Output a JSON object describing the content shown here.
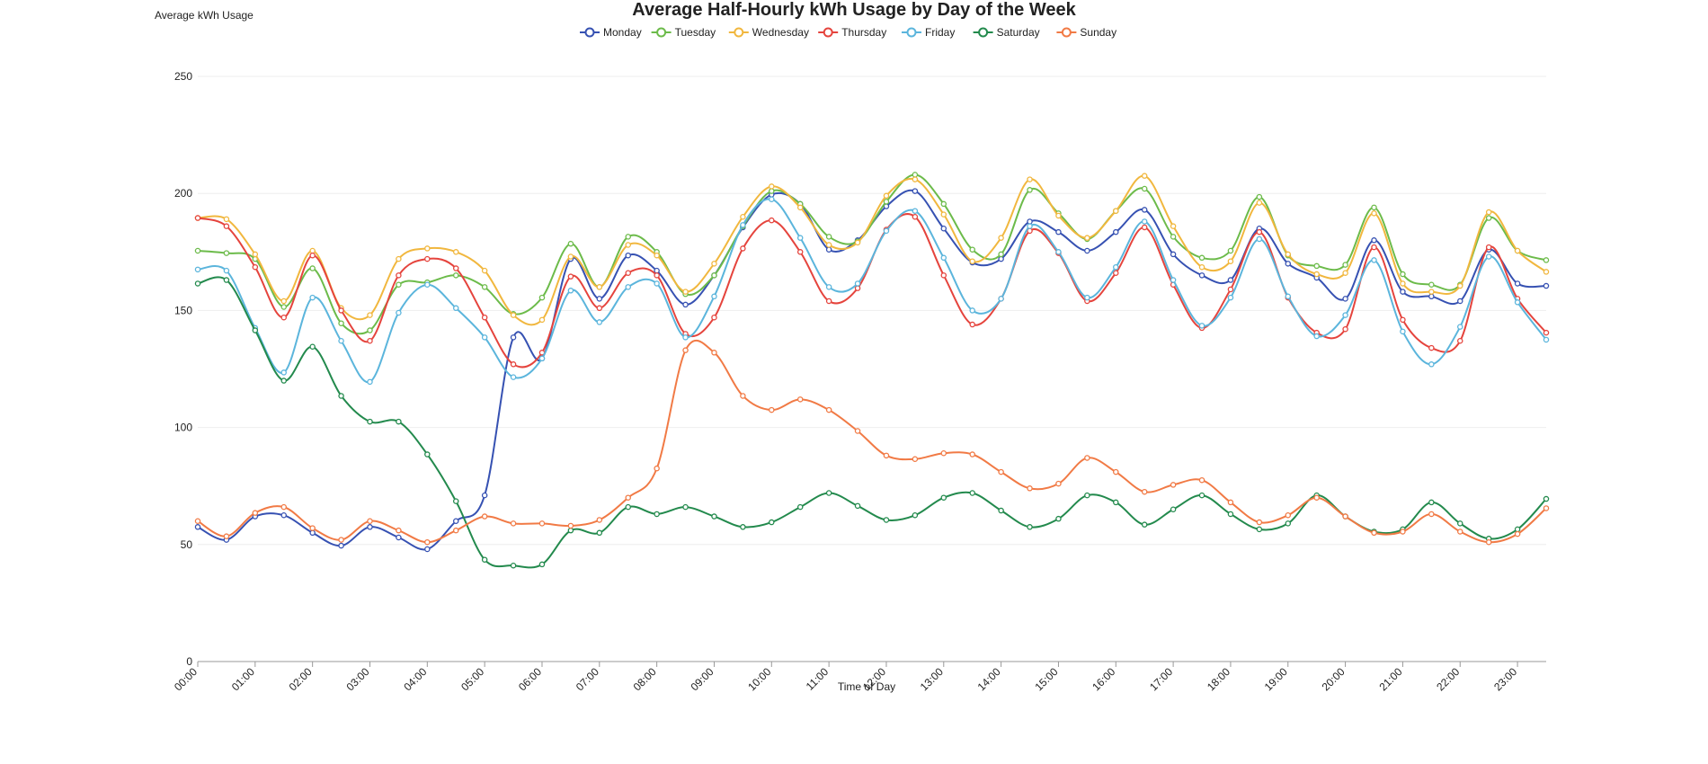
{
  "chart_data": {
    "type": "line",
    "title": "Average Half-Hourly kWh Usage by Day of the Week",
    "xlabel": "Time of Day",
    "ylabel": "Average kWh Usage",
    "ylim": [
      0,
      250
    ],
    "yticks": [
      0,
      50,
      100,
      150,
      200,
      250
    ],
    "grid": true,
    "legend": "top-center",
    "x_tick_labels": [
      "00:00",
      "01:00",
      "02:00",
      "03:00",
      "04:00",
      "05:00",
      "06:00",
      "07:00",
      "08:00",
      "09:00",
      "10:00",
      "11:00",
      "12:00",
      "13:00",
      "14:00",
      "15:00",
      "16:00",
      "17:00",
      "18:00",
      "19:00",
      "20:00",
      "21:00",
      "22:00",
      "23:00"
    ],
    "x": [
      "00:00",
      "00:30",
      "01:00",
      "01:30",
      "02:00",
      "02:30",
      "03:00",
      "03:30",
      "04:00",
      "04:30",
      "05:00",
      "05:30",
      "06:00",
      "06:30",
      "07:00",
      "07:30",
      "08:00",
      "08:30",
      "09:00",
      "09:30",
      "10:00",
      "10:30",
      "11:00",
      "11:30",
      "12:00",
      "12:30",
      "13:00",
      "13:30",
      "14:00",
      "14:30",
      "15:00",
      "15:30",
      "16:00",
      "16:30",
      "17:00",
      "17:30",
      "18:00",
      "18:30",
      "19:00",
      "19:30",
      "20:00",
      "20:30",
      "21:00",
      "21:30",
      "22:00",
      "22:30",
      "23:00",
      "23:30"
    ],
    "series": [
      {
        "name": "Monday",
        "color": "#3651b2",
        "values": [
          57.5,
          52,
          62,
          62.5,
          55,
          49.5,
          57.5,
          53,
          48,
          60,
          71,
          138.5,
          129.5,
          172,
          155,
          173.5,
          167,
          152.5,
          165,
          185.5,
          199.5,
          195.5,
          176,
          180,
          194.5,
          201,
          185,
          170.5,
          172,
          188,
          183.5,
          175.5,
          183.5,
          193,
          174,
          165,
          163,
          185,
          170,
          164,
          155,
          180,
          158,
          156,
          154,
          176,
          161.5,
          160.5
        ]
      },
      {
        "name": "Tuesday",
        "color": "#6cbb4a",
        "values": [
          175.5,
          174.5,
          172,
          151.5,
          168,
          144.5,
          141.5,
          161,
          162,
          165,
          160,
          148.5,
          155.5,
          178.5,
          160,
          181.5,
          175,
          157,
          165,
          186,
          201,
          195.5,
          181.5,
          179.5,
          196.5,
          208,
          195.5,
          176,
          174,
          201.5,
          191.5,
          180.5,
          192.5,
          202,
          181.5,
          172.5,
          175.5,
          198.5,
          173.5,
          169,
          169.5,
          194,
          165.5,
          161,
          161,
          189.5,
          175.5,
          171.5
        ]
      },
      {
        "name": "Wednesday",
        "color": "#f1b73e",
        "values": [
          189.5,
          189,
          174,
          154,
          175.5,
          151,
          148,
          172,
          176.5,
          175,
          167,
          148,
          146,
          173,
          160,
          178,
          173.5,
          158,
          170,
          190,
          203,
          194,
          178,
          179,
          199,
          206,
          191,
          171,
          181,
          206,
          190.5,
          181,
          192.5,
          207.5,
          186,
          168.5,
          171,
          196,
          174,
          165.5,
          166,
          191.5,
          161.5,
          158,
          160.5,
          192,
          175.5,
          166.5
        ]
      },
      {
        "name": "Thursday",
        "color": "#e5443d",
        "values": [
          189.5,
          186,
          168.5,
          147,
          173.5,
          150,
          137,
          165,
          172,
          168,
          147,
          127,
          132,
          164.5,
          151,
          166,
          165,
          140,
          147,
          176.5,
          188.5,
          175,
          154,
          159.5,
          184.5,
          190,
          165,
          144,
          155,
          184,
          174.5,
          154,
          166,
          185.5,
          161,
          142.5,
          159,
          183.5,
          155.5,
          140.5,
          142,
          177,
          146,
          134,
          137,
          177,
          155,
          140.5
        ]
      },
      {
        "name": "Friday",
        "color": "#5bb5dc",
        "values": [
          167.5,
          167,
          142.5,
          123.5,
          155.5,
          137,
          119.5,
          149,
          161,
          151,
          138.5,
          121.5,
          129.5,
          158.5,
          145,
          160,
          161.5,
          138.5,
          156,
          186.5,
          197.5,
          181,
          160,
          161.5,
          184,
          192.5,
          172.5,
          150,
          155,
          186,
          175,
          155.5,
          168.5,
          188,
          163,
          143.5,
          155.5,
          180.5,
          156,
          139,
          148,
          171.5,
          141,
          127,
          143,
          173,
          153.5,
          137.5
        ]
      },
      {
        "name": "Saturday",
        "color": "#238a4d",
        "values": [
          161.5,
          163,
          141.5,
          120,
          134.5,
          113.5,
          102.5,
          102.5,
          88.5,
          68.5,
          43.5,
          41,
          41.5,
          56,
          55,
          66,
          63,
          66,
          62,
          57.5,
          59.5,
          66,
          72,
          66.5,
          60.5,
          62.5,
          70,
          72,
          64.5,
          57.5,
          61,
          71,
          68,
          58.5,
          65,
          71,
          63,
          56.5,
          59,
          71,
          62,
          55.5,
          56.5,
          68,
          59,
          52.5,
          56.5,
          69.5
        ]
      },
      {
        "name": "Sunday",
        "color": "#f17a45",
        "values": [
          60,
          53.5,
          63.5,
          66,
          57,
          52,
          60,
          56,
          51,
          56,
          62,
          59,
          59,
          58,
          60.5,
          70,
          82.5,
          133,
          132,
          113.5,
          107.5,
          112,
          107.5,
          98.5,
          88,
          86.5,
          89,
          88.5,
          81,
          74,
          76,
          87,
          81,
          72.5,
          75.5,
          77.5,
          68,
          59.5,
          62.5,
          70,
          62,
          55,
          55.5,
          63,
          55.5,
          51,
          54.5,
          65.5
        ]
      }
    ]
  }
}
